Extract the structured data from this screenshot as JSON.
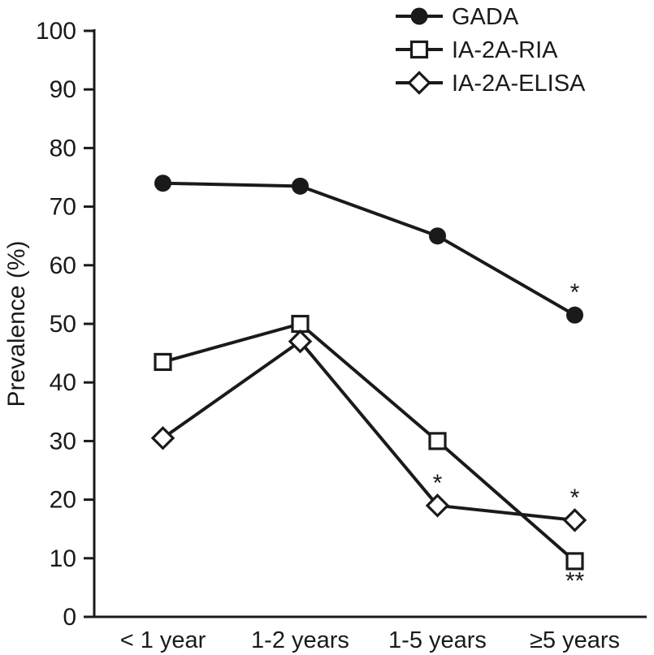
{
  "chart_data": {
    "type": "line",
    "title": "",
    "xlabel": "",
    "ylabel": "Prevalence (%)",
    "ylim": [
      0,
      100
    ],
    "ytick_step": 10,
    "grid": false,
    "legend_position": "top-right",
    "categories": [
      "< 1 year",
      "1-2 years",
      "1-5 years",
      "≥5 years"
    ],
    "series": [
      {
        "name": "GADA",
        "marker": "circle-filled",
        "values": [
          74,
          73.5,
          65,
          51.5
        ]
      },
      {
        "name": "IA-2A-RIA",
        "marker": "square-open",
        "values": [
          43.5,
          50,
          30,
          9.5
        ]
      },
      {
        "name": "IA-2A-ELISA",
        "marker": "diamond-open",
        "values": [
          30.5,
          47,
          19,
          16.5
        ]
      }
    ],
    "annotations": [
      {
        "text": "*",
        "series": "GADA",
        "index": 3,
        "position": "above"
      },
      {
        "text": "*",
        "series": "IA-2A-ELISA",
        "index": 2,
        "position": "above"
      },
      {
        "text": "*",
        "series": "IA-2A-ELISA",
        "index": 3,
        "position": "above"
      },
      {
        "text": "**",
        "series": "IA-2A-RIA",
        "index": 3,
        "position": "below"
      }
    ],
    "colors": {
      "line": "#1a1a1a",
      "background": "#ffffff"
    }
  }
}
